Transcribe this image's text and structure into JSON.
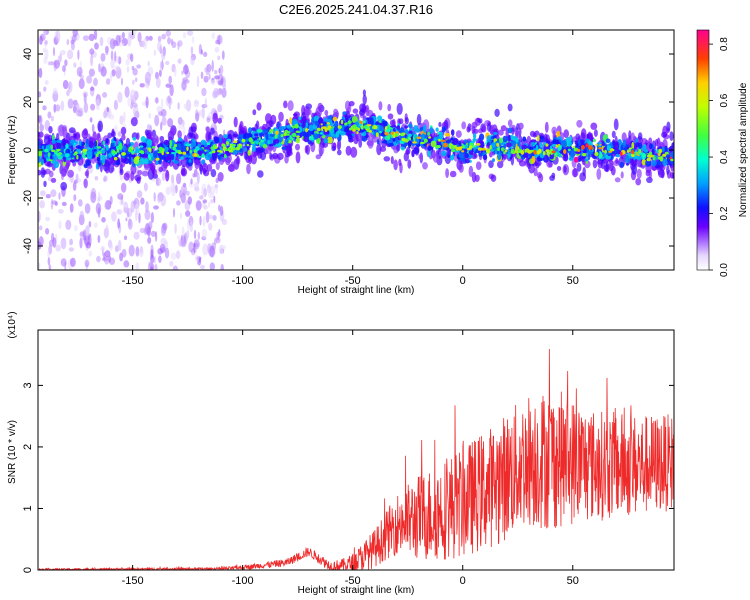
{
  "page_title": "C2E6.2025.241.04.37.R16",
  "colors": {
    "snr_line": "#ee2a2a",
    "axis": "#000000"
  },
  "chart_data": [
    {
      "type": "heatmap",
      "title": "C2E6.2025.241.04.37.R16",
      "xlabel": "Height of straight line (km)",
      "ylabel": "Frequency (Hz)",
      "xlim": [
        -193,
        96
      ],
      "ylim": [
        -50,
        50
      ],
      "xticks": [
        -150,
        -100,
        -50,
        0,
        50
      ],
      "yticks": [
        -40,
        -20,
        0,
        20,
        40
      ],
      "colorbar": {
        "label": "Normalized spectral amplitude",
        "range": [
          0.0,
          0.85
        ],
        "ticks": [
          0.0,
          0.2,
          0.4,
          0.6,
          0.8
        ],
        "tick_labels": [
          "0.0",
          "0.2",
          "0.4",
          "0.6",
          "0.8"
        ],
        "colormap": "rainbow"
      },
      "ridge_center": [
        {
          "x": -190,
          "y": -1
        },
        {
          "x": -150,
          "y": -1
        },
        {
          "x": -110,
          "y": 0
        },
        {
          "x": -90,
          "y": 5
        },
        {
          "x": -75,
          "y": 8
        },
        {
          "x": -55,
          "y": 10
        },
        {
          "x": -40,
          "y": 9
        },
        {
          "x": -25,
          "y": 5
        },
        {
          "x": -10,
          "y": 4
        },
        {
          "x": 0,
          "y": 0
        },
        {
          "x": 10,
          "y": 2
        },
        {
          "x": 30,
          "y": 0
        },
        {
          "x": 50,
          "y": 0
        },
        {
          "x": 70,
          "y": 0
        },
        {
          "x": 85,
          "y": -2
        },
        {
          "x": 95,
          "y": -3
        }
      ],
      "scatter_region": {
        "x": [
          -193,
          -108
        ],
        "y": [
          -50,
          50
        ]
      }
    },
    {
      "type": "line",
      "xlabel": "Height of straight line (km)",
      "ylabel": "SNR (10 * v/v)",
      "scale_label": "(x10⁴)",
      "xlim": [
        -193,
        96
      ],
      "ylim": [
        0,
        3.9
      ],
      "xticks": [
        -150,
        -100,
        -50,
        0,
        50
      ],
      "yticks": [
        0,
        1,
        2,
        3
      ],
      "series": [
        {
          "name": "SNR",
          "envelope_mean": [
            {
              "x": -193,
              "y": 0.01
            },
            {
              "x": -110,
              "y": 0.02
            },
            {
              "x": -100,
              "y": 0.04
            },
            {
              "x": -80,
              "y": 0.12
            },
            {
              "x": -70,
              "y": 0.3
            },
            {
              "x": -60,
              "y": 0.06
            },
            {
              "x": -50,
              "y": 0.1
            },
            {
              "x": -40,
              "y": 0.35
            },
            {
              "x": -30,
              "y": 0.75
            },
            {
              "x": -15,
              "y": 0.9
            },
            {
              "x": 0,
              "y": 1.1
            },
            {
              "x": 15,
              "y": 1.4
            },
            {
              "x": 30,
              "y": 1.8
            },
            {
              "x": 45,
              "y": 1.8
            },
            {
              "x": 60,
              "y": 1.7
            },
            {
              "x": 80,
              "y": 1.7
            },
            {
              "x": 96,
              "y": 1.75
            }
          ],
          "envelope_spread": [
            {
              "x": -193,
              "y": 0.02
            },
            {
              "x": -110,
              "y": 0.03
            },
            {
              "x": -80,
              "y": 0.1
            },
            {
              "x": -55,
              "y": 0.15
            },
            {
              "x": -35,
              "y": 0.6
            },
            {
              "x": -20,
              "y": 1.1
            },
            {
              "x": 0,
              "y": 1.4
            },
            {
              "x": 20,
              "y": 1.6
            },
            {
              "x": 40,
              "y": 1.8
            },
            {
              "x": 60,
              "y": 1.4
            },
            {
              "x": 96,
              "y": 1.2
            }
          ]
        }
      ]
    }
  ]
}
